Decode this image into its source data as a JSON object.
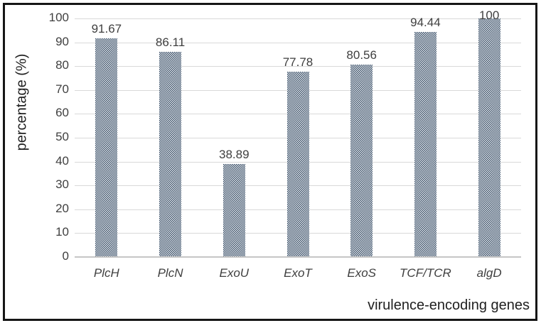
{
  "chart_data": {
    "type": "bar",
    "title": "",
    "categories": [
      "PlcH",
      "PlcN",
      "ExoU",
      "ExoT",
      "ExoS",
      "TCF/TCR",
      "algD"
    ],
    "values": [
      91.67,
      86.11,
      38.89,
      77.78,
      80.56,
      94.44,
      100
    ],
    "value_labels": [
      "91.67",
      "86.11",
      "38.89",
      "77.78",
      "80.56",
      "94.44",
      "100"
    ],
    "xlabel": "virulence-encoding genes",
    "ylabel": "percentage (%)",
    "ylim": [
      0,
      100
    ],
    "yticks": [
      0,
      10,
      20,
      30,
      40,
      50,
      60,
      70,
      80,
      90,
      100
    ],
    "grid": "horizontal",
    "legend": "none",
    "bar_pattern": "dotted-checker",
    "category_label_style": "italic",
    "colors": {
      "bar_base": "#44566b",
      "bar_dots": "#e1e7ed",
      "gridline": "#d9d9d9",
      "axis_line": "#c6c6c6",
      "tick_text": "#3f3f3f",
      "axis_title_text": "#1f1f1f",
      "frame_border": "#161616",
      "background": "#ffffff"
    }
  }
}
